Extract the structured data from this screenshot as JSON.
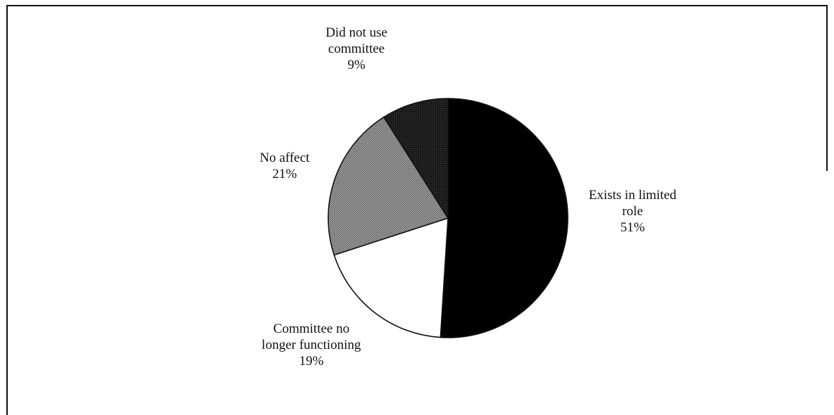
{
  "chart_data": {
    "type": "pie",
    "slices": [
      {
        "label_lines": [
          "Exists in limited",
          "role"
        ],
        "percent_label": "51%",
        "value": 51,
        "fill": "#000000"
      },
      {
        "label_lines": [
          "Committee no",
          "longer functioning"
        ],
        "percent_label": "19%",
        "value": 19,
        "fill": "#ffffff"
      },
      {
        "label_lines": [
          "No affect"
        ],
        "percent_label": "21%",
        "value": 21,
        "fill": "#8a8a8a"
      },
      {
        "label_lines": [
          "Did not use",
          "committee"
        ],
        "percent_label": "9%",
        "value": 9,
        "fill": "#2a2a2a"
      }
    ]
  }
}
